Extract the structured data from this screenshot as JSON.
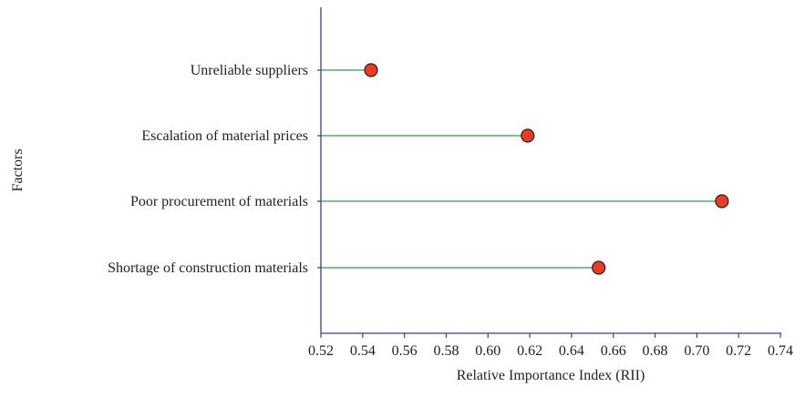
{
  "chart_data": {
    "type": "lollipop",
    "title": "",
    "xlabel": "Relative Importance Index (RII)",
    "ylabel": "Factors",
    "xlim": [
      0.52,
      0.74
    ],
    "xticks": [
      0.52,
      0.54,
      0.56,
      0.58,
      0.6,
      0.62,
      0.64,
      0.66,
      0.68,
      0.7,
      0.72,
      0.74
    ],
    "xtick_labels": [
      "0.52",
      "0.54",
      "0.56",
      "0.58",
      "0.60",
      "0.62",
      "0.64",
      "0.66",
      "0.68",
      "0.70",
      "0.72",
      "0.74"
    ],
    "categories": [
      "Unreliable suppliers",
      "Escalation of material prices",
      "Poor procurement of materials",
      "Shortage of construction materials"
    ],
    "values": [
      0.544,
      0.619,
      0.712,
      0.653
    ],
    "grid": false,
    "legend": "none",
    "colors": {
      "axis": "#3a3a9a",
      "stem": "#2e9e4a",
      "marker_fill": "#ee3a22",
      "marker_stroke": "#222222"
    }
  }
}
